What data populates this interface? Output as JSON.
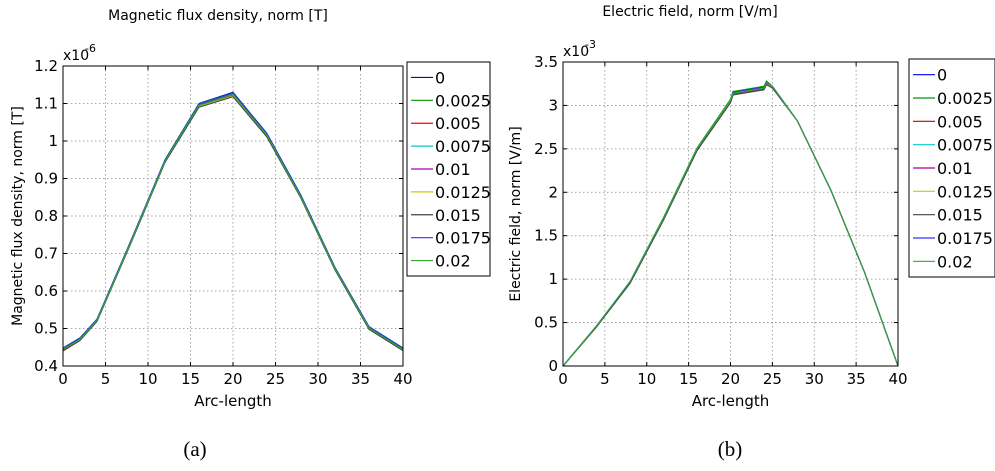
{
  "chart_data": [
    {
      "type": "line",
      "title": "Magnetic flux density, norm [T]",
      "xlabel": "Arc-length",
      "ylabel": "Magnetic flux density, norm [T]",
      "y_multiplier": "x10",
      "y_exponent": "-6",
      "xlim": [
        0,
        40
      ],
      "ylim": [
        0.4,
        1.2
      ],
      "xticks": [
        0,
        5,
        10,
        15,
        20,
        25,
        30,
        35,
        40
      ],
      "yticks": [
        0.4,
        0.5,
        0.6,
        0.7,
        0.8,
        0.9,
        1,
        1.1,
        1.2
      ],
      "grid": true,
      "legend_position": "right-outside",
      "caption": "(a)",
      "x": [
        0,
        2,
        4,
        8,
        12,
        16,
        20,
        24,
        28,
        32,
        36,
        40
      ],
      "series": [
        {
          "name": "0",
          "color": "#0000ff",
          "values": [
            0.448,
            0.475,
            0.525,
            0.735,
            0.95,
            1.1,
            1.13,
            1.02,
            0.855,
            0.663,
            0.505,
            0.448
          ]
        },
        {
          "name": "0.0025",
          "color": "#009900",
          "values": [
            0.447,
            0.474,
            0.524,
            0.734,
            0.949,
            1.099,
            1.128,
            1.018,
            0.853,
            0.662,
            0.504,
            0.447
          ]
        },
        {
          "name": "0.005",
          "color": "#ff0000",
          "values": [
            0.44,
            0.468,
            0.52,
            0.73,
            0.945,
            1.093,
            1.122,
            1.013,
            0.849,
            0.658,
            0.499,
            0.442
          ]
        },
        {
          "name": "0.0075",
          "color": "#00cccc",
          "values": [
            0.445,
            0.472,
            0.523,
            0.732,
            0.947,
            1.096,
            1.125,
            1.016,
            0.851,
            0.66,
            0.502,
            0.445
          ]
        },
        {
          "name": "0.01",
          "color": "#aa00aa",
          "values": [
            0.443,
            0.47,
            0.521,
            0.73,
            0.945,
            1.094,
            1.123,
            1.014,
            0.85,
            0.659,
            0.5,
            0.443
          ]
        },
        {
          "name": "0.0125",
          "color": "#cccc00",
          "values": [
            0.442,
            0.469,
            0.52,
            0.729,
            0.944,
            1.092,
            1.12,
            1.012,
            0.848,
            0.657,
            0.499,
            0.442
          ]
        },
        {
          "name": "0.015",
          "color": "#444444",
          "values": [
            0.441,
            0.468,
            0.519,
            0.728,
            0.943,
            1.09,
            1.118,
            1.01,
            0.847,
            0.656,
            0.498,
            0.441
          ]
        },
        {
          "name": "0.0175",
          "color": "#3333ff",
          "values": [
            0.446,
            0.473,
            0.524,
            0.733,
            0.948,
            1.097,
            1.127,
            1.017,
            0.852,
            0.661,
            0.503,
            0.446
          ]
        },
        {
          "name": "0.02",
          "color": "#33aa33",
          "values": [
            0.444,
            0.471,
            0.522,
            0.731,
            0.946,
            1.095,
            1.124,
            1.015,
            0.85,
            0.659,
            0.501,
            0.444
          ]
        }
      ]
    },
    {
      "type": "line",
      "title": "Electric field, norm [V/m]",
      "xlabel": "Arc-length",
      "ylabel": "Electric field, norm [V/m]",
      "y_multiplier": "x10",
      "y_exponent": "-3",
      "xlim": [
        0,
        40
      ],
      "ylim": [
        0,
        3.5
      ],
      "xticks": [
        0,
        5,
        10,
        15,
        20,
        25,
        30,
        35,
        40
      ],
      "yticks": [
        0,
        0.5,
        1,
        1.5,
        2,
        2.5,
        3,
        3.5
      ],
      "grid": true,
      "legend_position": "right-outside",
      "caption": "(b)",
      "x": [
        0,
        4,
        8,
        12,
        16,
        20,
        20.3,
        24,
        24.3,
        25,
        28,
        32,
        36,
        40
      ],
      "series": [
        {
          "name": "0",
          "color": "#0000ff",
          "values": [
            0,
            0.46,
            0.97,
            1.7,
            2.5,
            3.06,
            3.15,
            3.21,
            3.27,
            3.22,
            2.82,
            2.02,
            1.08,
            0
          ]
        },
        {
          "name": "0.0025",
          "color": "#009900",
          "values": [
            0,
            0.46,
            0.97,
            1.71,
            2.51,
            3.07,
            3.16,
            3.22,
            3.28,
            3.22,
            2.82,
            2.02,
            1.08,
            0
          ]
        },
        {
          "name": "0.005",
          "color": "#cc0000",
          "values": [
            0,
            0.45,
            0.96,
            1.69,
            2.48,
            3.04,
            3.13,
            3.19,
            3.25,
            3.21,
            2.82,
            2.02,
            1.08,
            0
          ]
        },
        {
          "name": "0.0075",
          "color": "#00cccc",
          "values": [
            0,
            0.46,
            0.97,
            1.7,
            2.5,
            3.06,
            3.14,
            3.2,
            3.26,
            3.22,
            2.82,
            2.02,
            1.08,
            0
          ]
        },
        {
          "name": "0.01",
          "color": "#aa00aa",
          "values": [
            0,
            0.45,
            0.96,
            1.69,
            2.49,
            3.05,
            3.13,
            3.19,
            3.25,
            3.21,
            2.82,
            2.02,
            1.08,
            0
          ]
        },
        {
          "name": "0.0125",
          "color": "#cccc00",
          "values": [
            0,
            0.45,
            0.96,
            1.69,
            2.48,
            3.04,
            3.12,
            3.18,
            3.24,
            3.21,
            2.82,
            2.02,
            1.08,
            0
          ]
        },
        {
          "name": "0.015",
          "color": "#444444",
          "values": [
            0,
            0.45,
            0.95,
            1.68,
            2.48,
            3.03,
            3.12,
            3.18,
            3.24,
            3.2,
            2.82,
            2.02,
            1.08,
            0
          ]
        },
        {
          "name": "0.0175",
          "color": "#3333ff",
          "values": [
            0,
            0.46,
            0.97,
            1.7,
            2.5,
            3.06,
            3.15,
            3.21,
            3.27,
            3.22,
            2.82,
            2.02,
            1.08,
            0
          ]
        },
        {
          "name": "0.02",
          "color": "#33aa33",
          "values": [
            0,
            0.46,
            0.97,
            1.7,
            2.5,
            3.06,
            3.14,
            3.2,
            3.26,
            3.22,
            2.82,
            2.02,
            1.08,
            0
          ]
        }
      ]
    }
  ]
}
